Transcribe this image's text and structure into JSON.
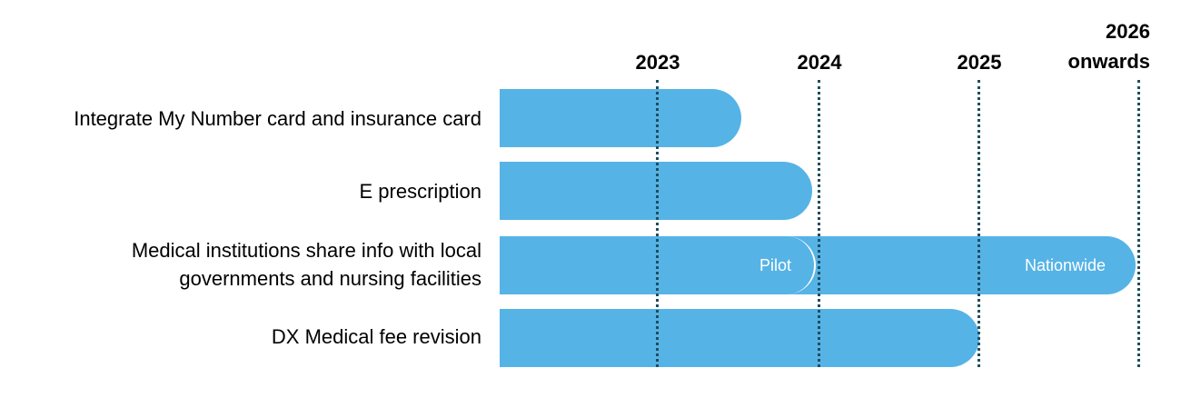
{
  "timeline": {
    "columns": [
      "2023",
      "2024",
      "2025",
      "2026 onwards"
    ],
    "rows": [
      {
        "label": "Integrate My Number card and insurance card"
      },
      {
        "label": "E prescription"
      },
      {
        "label": "Medical institutions share info with local governments and nursing facilities",
        "phases": [
          "Pilot",
          "Nationwide"
        ]
      },
      {
        "label": "DX Medical fee revision"
      }
    ]
  }
}
